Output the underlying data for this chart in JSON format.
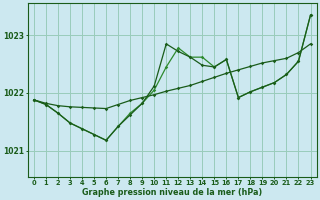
{
  "title": "Graphe pression niveau de la mer (hPa)",
  "bg_color": "#cce8f0",
  "grid_color": "#99ccbb",
  "line_color_dark": "#1a5c1a",
  "line_color_light": "#2d8a2d",
  "x_ticks": [
    0,
    1,
    2,
    3,
    4,
    5,
    6,
    7,
    8,
    9,
    10,
    11,
    12,
    13,
    14,
    15,
    16,
    17,
    18,
    19,
    20,
    21,
    22,
    23
  ],
  "y_ticks": [
    1021,
    1022,
    1023
  ],
  "ylim": [
    1020.55,
    1023.55
  ],
  "xlim": [
    -0.5,
    23.5
  ],
  "series_flat": [
    1021.88,
    1021.82,
    1021.78,
    1021.76,
    1021.75,
    1021.74,
    1021.73,
    1021.8,
    1021.87,
    1021.92,
    1021.97,
    1022.03,
    1022.08,
    1022.13,
    1022.2,
    1022.27,
    1022.34,
    1022.4,
    1022.46,
    1022.52,
    1022.56,
    1022.6,
    1022.7,
    1022.85
  ],
  "series_dip": [
    1021.88,
    1021.8,
    1021.65,
    1021.48,
    1021.38,
    1021.28,
    1021.18,
    1021.42,
    1021.65,
    1021.82,
    1022.05,
    1022.45,
    1022.78,
    1022.62,
    1022.62,
    1022.45,
    1022.58,
    1021.92,
    1022.02,
    1022.1,
    1022.18,
    1022.32,
    1022.55,
    1023.35
  ],
  "series_peak": [
    1021.88,
    1021.8,
    1021.65,
    1021.48,
    1021.38,
    1021.28,
    1021.18,
    1021.42,
    1021.62,
    1021.82,
    1022.12,
    1022.85,
    1022.72,
    1022.62,
    1022.48,
    1022.45,
    1022.58,
    1021.92,
    1022.02,
    1022.1,
    1022.18,
    1022.32,
    1022.55,
    1023.35
  ]
}
